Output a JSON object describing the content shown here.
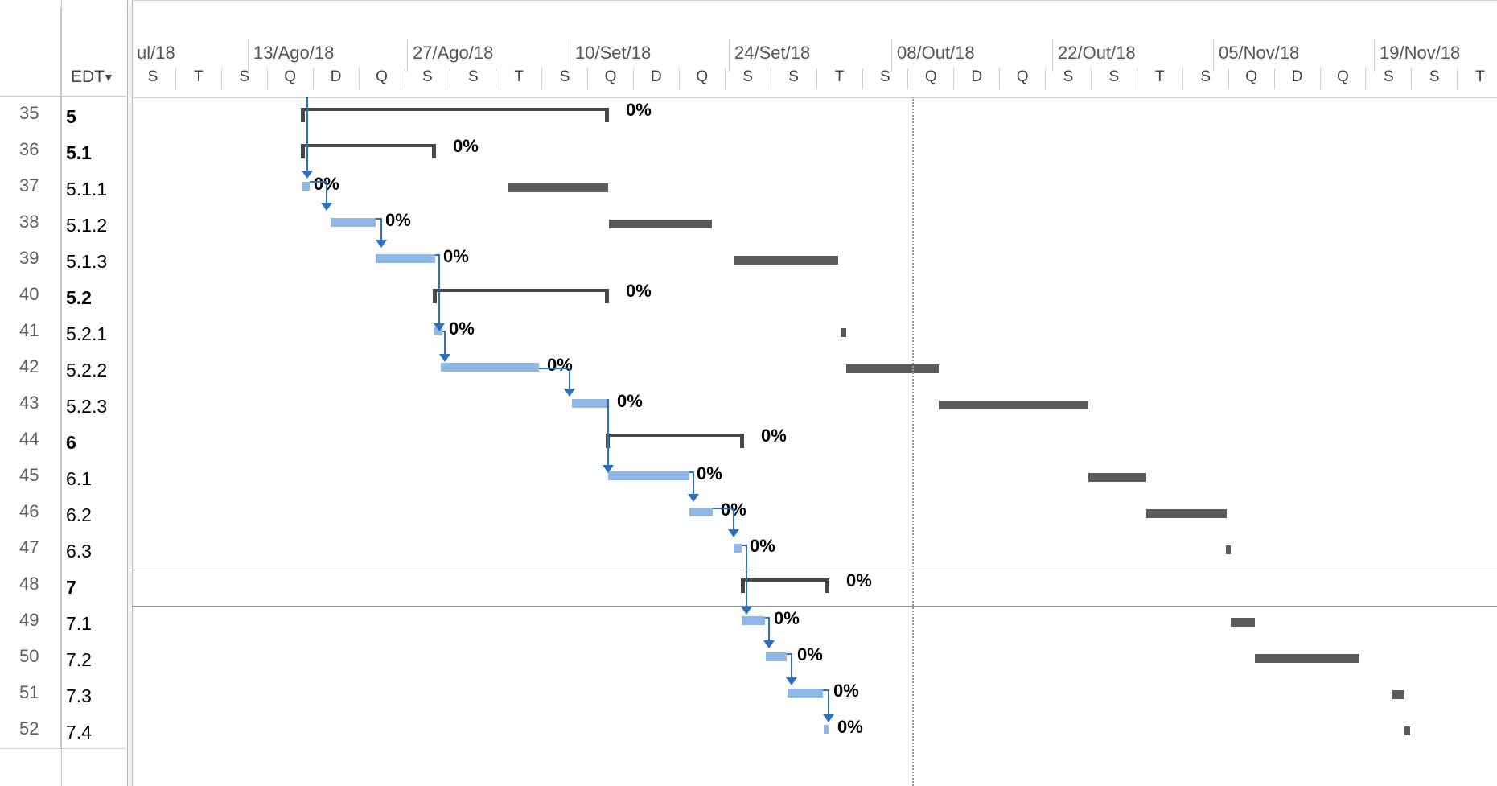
{
  "left_grid": {
    "edt_header": "EDT",
    "rows": [
      {
        "id": "35",
        "wbs": "5",
        "bold": true
      },
      {
        "id": "36",
        "wbs": "5.1",
        "bold": true
      },
      {
        "id": "37",
        "wbs": "5.1.1",
        "bold": false
      },
      {
        "id": "38",
        "wbs": "5.1.2",
        "bold": false
      },
      {
        "id": "39",
        "wbs": "5.1.3",
        "bold": false
      },
      {
        "id": "40",
        "wbs": "5.2",
        "bold": true
      },
      {
        "id": "41",
        "wbs": "5.2.1",
        "bold": false
      },
      {
        "id": "42",
        "wbs": "5.2.2",
        "bold": false
      },
      {
        "id": "43",
        "wbs": "5.2.3",
        "bold": false
      },
      {
        "id": "44",
        "wbs": "6",
        "bold": true
      },
      {
        "id": "45",
        "wbs": "6.1",
        "bold": false
      },
      {
        "id": "46",
        "wbs": "6.2",
        "bold": false
      },
      {
        "id": "47",
        "wbs": "6.3",
        "bold": false
      },
      {
        "id": "48",
        "wbs": "7",
        "bold": true
      },
      {
        "id": "49",
        "wbs": "7.1",
        "bold": false
      },
      {
        "id": "50",
        "wbs": "7.2",
        "bold": false
      },
      {
        "id": "51",
        "wbs": "7.3",
        "bold": false
      },
      {
        "id": "52",
        "wbs": "7.4",
        "bold": false
      }
    ]
  },
  "timescale": {
    "periods": [
      "ul/18",
      "13/Ago/18",
      "27/Ago/18",
      "10/Set/18",
      "24/Set/18",
      "08/Out/18",
      "22/Out/18",
      "05/Nov/18",
      "19/Nov/18"
    ],
    "day_labels": [
      "S",
      "T",
      "S",
      "Q",
      "D",
      "Q",
      "S",
      "S",
      "T",
      "S",
      "Q",
      "D",
      "Q",
      "S",
      "S",
      "T",
      "S",
      "Q",
      "D",
      "Q",
      "S",
      "S",
      "T",
      "S",
      "Q",
      "D",
      "Q",
      "S",
      "S",
      "T"
    ]
  },
  "gantt": {
    "percent_label": "0%",
    "colors": {
      "task_bar": "#90b8e5",
      "summary_bar": "#474747",
      "baseline_bar": "#5b5b5b",
      "link_arrow": "#2e6fbf"
    }
  }
}
